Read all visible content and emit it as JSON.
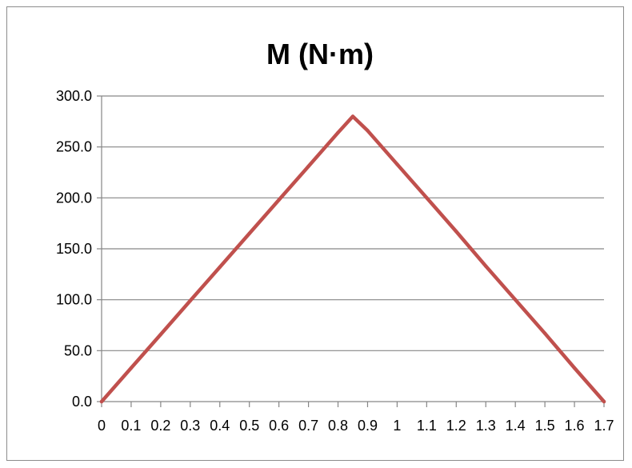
{
  "chart_data": {
    "type": "line",
    "title": "M (N·m)",
    "xlabel": "",
    "ylabel": "",
    "x_categories": [
      "0",
      "0.1",
      "0.2",
      "0.3",
      "0.4",
      "0.5",
      "0.6",
      "0.7",
      "0.8",
      "0.9",
      "1",
      "1.1",
      "1.2",
      "1.3",
      "1.4",
      "1.5",
      "1.6",
      "1.7"
    ],
    "y_ticks": [
      "0.0",
      "50.0",
      "100.0",
      "150.0",
      "200.0",
      "250.0",
      "300.0"
    ],
    "ylim": [
      0,
      300
    ],
    "grid": "horizontal",
    "legend": "none",
    "series": [
      {
        "color": "#c0504d",
        "points": [
          {
            "x": 0.0,
            "y": 0.0
          },
          {
            "x": 0.1,
            "y": 33.0
          },
          {
            "x": 0.2,
            "y": 66.0
          },
          {
            "x": 0.3,
            "y": 99.0
          },
          {
            "x": 0.4,
            "y": 132.0
          },
          {
            "x": 0.5,
            "y": 165.0
          },
          {
            "x": 0.6,
            "y": 198.0
          },
          {
            "x": 0.7,
            "y": 231.0
          },
          {
            "x": 0.8,
            "y": 264.0
          },
          {
            "x": 0.85,
            "y": 280.0
          },
          {
            "x": 0.9,
            "y": 266.0
          },
          {
            "x": 1.0,
            "y": 233.0
          },
          {
            "x": 1.1,
            "y": 200.0
          },
          {
            "x": 1.2,
            "y": 167.0
          },
          {
            "x": 1.3,
            "y": 133.0
          },
          {
            "x": 1.4,
            "y": 100.0
          },
          {
            "x": 1.5,
            "y": 67.0
          },
          {
            "x": 1.6,
            "y": 33.0
          },
          {
            "x": 1.7,
            "y": 0.0
          }
        ]
      }
    ]
  }
}
